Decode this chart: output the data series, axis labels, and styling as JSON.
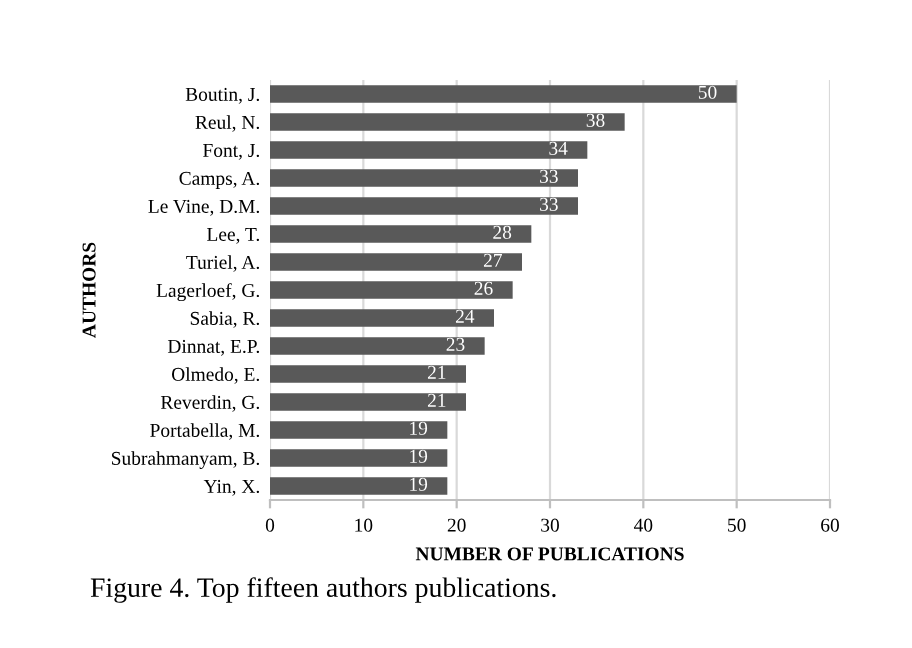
{
  "chart_data": {
    "type": "bar",
    "orientation": "horizontal",
    "xlabel": "NUMBER OF PUBLICATIONS",
    "ylabel": "AUTHORS",
    "categories": [
      "Boutin, J.",
      "Reul, N.",
      "Font, J.",
      "Camps, A.",
      "Le Vine, D.M.",
      "Lee, T.",
      "Turiel, A.",
      "Lagerloef, G.",
      "Sabia, R.",
      "Dinnat, E.P.",
      "Olmedo, E.",
      "Reverdin, G.",
      "Portabella, M.",
      "Subrahmanyam, B.",
      "Yin, X."
    ],
    "values": [
      50,
      38,
      34,
      33,
      33,
      28,
      27,
      26,
      24,
      23,
      21,
      21,
      19,
      19,
      19
    ],
    "color": "#595959",
    "xlim": [
      0,
      60
    ],
    "xticks": [
      0,
      10,
      20,
      30,
      40,
      50,
      60
    ],
    "grid": "x",
    "data_labels": true,
    "annotations": [
      "Figure 4. Top fifteen authors publications."
    ]
  }
}
